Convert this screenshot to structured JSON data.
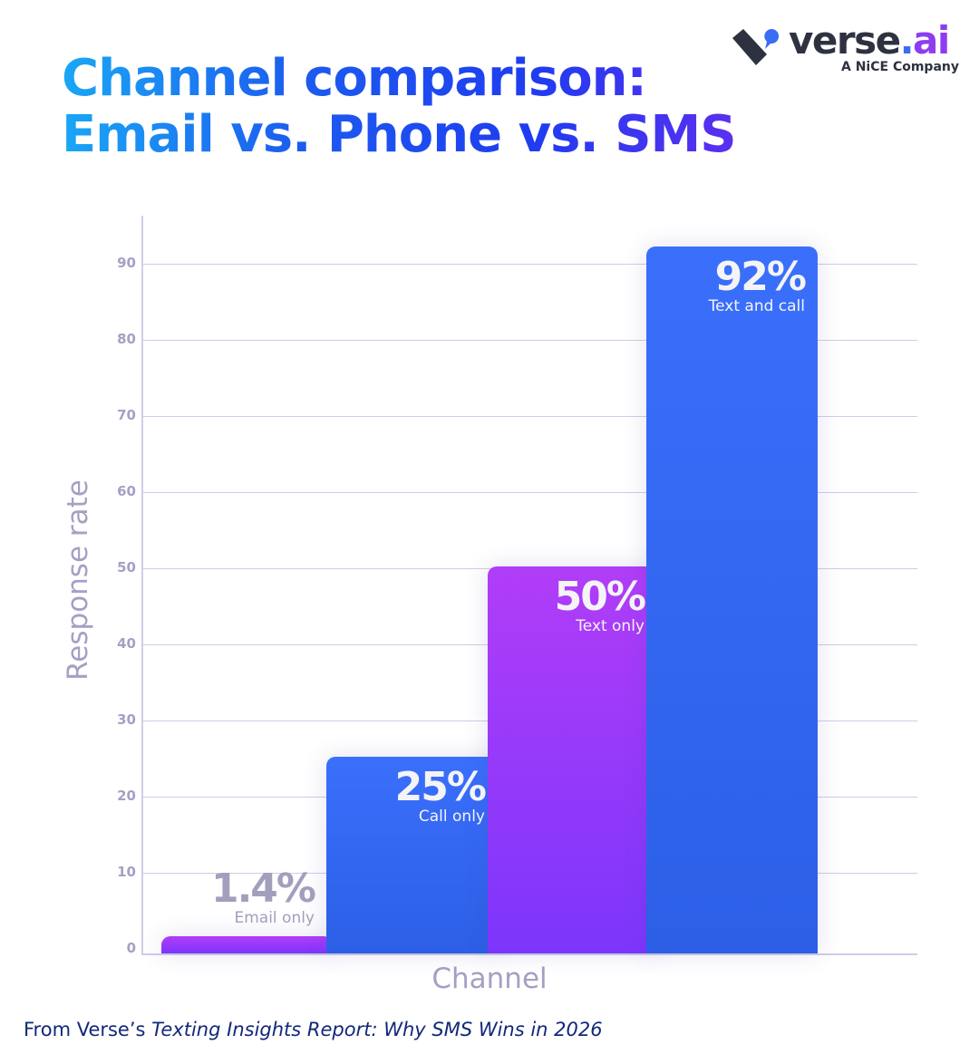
{
  "header": {
    "title_line1": "Channel comparison:",
    "title_line2": "Email vs. Phone vs. SMS"
  },
  "logo": {
    "icon": "verse-logo-mark-icon",
    "word_main": "verse",
    "word_dot": ".",
    "word_ai": "ai",
    "tagline_prefix": "A ",
    "tagline_brand": "NiCE",
    "tagline_suffix": " Company"
  },
  "chart_data": {
    "type": "bar",
    "title": "Channel comparison: Email vs. Phone vs. SMS",
    "xlabel": "Channel",
    "ylabel": "Response rate",
    "ylim": [
      0,
      95
    ],
    "yticks": [
      0,
      10,
      20,
      30,
      40,
      50,
      60,
      70,
      80,
      90
    ],
    "grid": true,
    "legend": "none",
    "categories": [
      "Email only",
      "Call only",
      "Text only",
      "Text and call"
    ],
    "values": [
      1.4,
      25,
      50,
      92
    ],
    "value_labels": [
      "1.4%",
      "25%",
      "50%",
      "92%"
    ],
    "colors": [
      "#a83cf8",
      "#3166f0",
      "#9a3afa",
      "#3367f2"
    ]
  },
  "footer": {
    "source_prefix": "From Verse’s ",
    "source_italic": "Texting Insights Report: Why SMS Wins in 2026"
  }
}
